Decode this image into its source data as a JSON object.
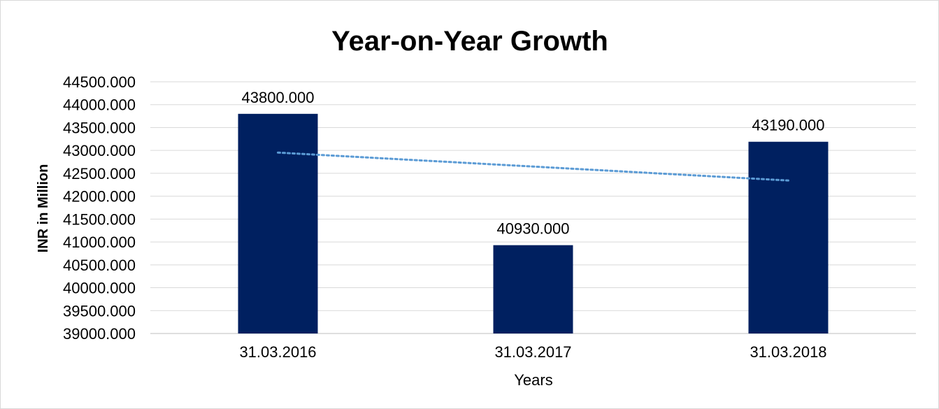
{
  "chart_data": {
    "type": "bar",
    "title": "Year-on-Year Growth",
    "xlabel": "Years",
    "ylabel": "INR in Million",
    "categories": [
      "31.03.2016",
      "31.03.2017",
      "31.03.2018"
    ],
    "values": [
      43800,
      40930,
      43190
    ],
    "data_labels": [
      "43800.000",
      "40930.000",
      "43190.000"
    ],
    "ylim": [
      39000,
      44500
    ],
    "y_ticks": [
      {
        "value": 39000,
        "label": "39000.000"
      },
      {
        "value": 39500,
        "label": "39500.000"
      },
      {
        "value": 40000,
        "label": "40000.000"
      },
      {
        "value": 40500,
        "label": "40500.000"
      },
      {
        "value": 41000,
        "label": "41000.000"
      },
      {
        "value": 41500,
        "label": "41500.000"
      },
      {
        "value": 42000,
        "label": "42000.000"
      },
      {
        "value": 42500,
        "label": "42500.000"
      },
      {
        "value": 43000,
        "label": "43000.000"
      },
      {
        "value": 43500,
        "label": "43500.000"
      },
      {
        "value": 44000,
        "label": "44000.000"
      },
      {
        "value": 44500,
        "label": "44500.000"
      }
    ],
    "trendline": {
      "type": "linear",
      "style": "dotted",
      "start_value": 42953,
      "end_value": 42343,
      "color": "#5b9bd5"
    },
    "grid": true,
    "legend": "none",
    "bar_color": "#002060",
    "gridline_color": "#d9d9d9"
  }
}
